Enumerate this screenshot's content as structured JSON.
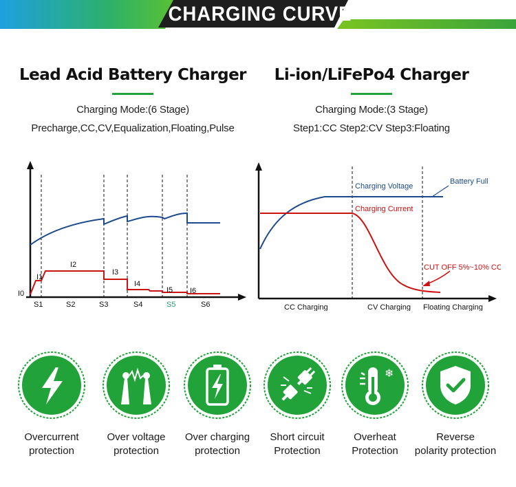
{
  "header": {
    "title": "CHARGING CURVE"
  },
  "lead_acid": {
    "title": "Lead Acid Battery Charger",
    "mode": "Charging Mode:(6 Stage)",
    "stages": "Precharge,CC,CV,Equalization,Floating,Pulse",
    "chart": {
      "x_labels": [
        "S1",
        "S2",
        "S3",
        "S4",
        "S5",
        "S6"
      ],
      "current_labels": [
        "I0",
        "I1",
        "I2",
        "I3",
        "I4",
        "I5",
        "I6"
      ]
    }
  },
  "lithium": {
    "title": "Li-ion/LiFePo4 Charger",
    "mode": "Charging Mode:(3 Stage)",
    "stages": "Step1:CC  Step2:CV  Step3:Floating",
    "chart": {
      "voltage_label": "Charging Voltage",
      "current_label": "Charging Current",
      "full_label": "Battery  Full",
      "cutoff_label": "CUT OFF   5%~10% CC",
      "x_labels": [
        "CC Charging",
        "CV Charging",
        "Floating Charging"
      ]
    }
  },
  "colors": {
    "green": "#22a33a",
    "blue": "#1c4a8c",
    "red": "#cc1111",
    "s5": "#2a9a6a"
  },
  "features": [
    {
      "icon": "lightning-icon",
      "line1": "Overcurrent",
      "line2": "protection"
    },
    {
      "icon": "voltage-tower-icon",
      "line1": "Over voltage",
      "line2": "protection"
    },
    {
      "icon": "battery-charging-icon",
      "line1": "Over charging",
      "line2": "protection"
    },
    {
      "icon": "plug-icon",
      "line1": "Short circuit",
      "line2": "Protection"
    },
    {
      "icon": "thermometer-icon",
      "line1": "Overheat",
      "line2": "Protection"
    },
    {
      "icon": "shield-check-icon",
      "line1": "Reverse",
      "line2": "polarity protection"
    }
  ]
}
